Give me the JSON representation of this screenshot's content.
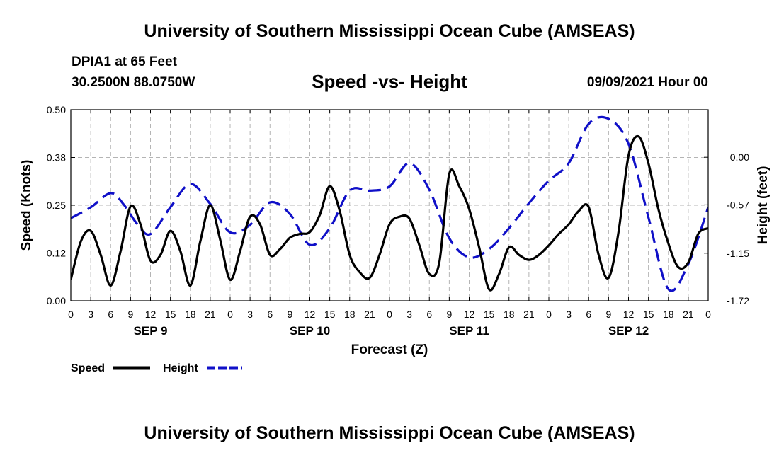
{
  "header": {
    "title": "University of Southern Mississippi Ocean Cube (AMSEAS)",
    "station": "DPIA1 at 65 Feet",
    "coords": "30.2500N  88.0750W",
    "subtitle": "Speed -vs- Height",
    "datetime": "09/09/2021 Hour 00"
  },
  "footer": {
    "title": "University of Southern Mississippi Ocean Cube (AMSEAS)"
  },
  "colors": {
    "speed": "#000000",
    "height": "#1010c8",
    "grid": "#b4b4b4"
  },
  "chart_data": {
    "type": "line",
    "title": "Speed -vs- Height",
    "xlabel": "Forecast (Z)",
    "ylabel": "Speed (Knots)",
    "y2label": "Height (feet)",
    "xlim": [
      0,
      96
    ],
    "ylim": [
      0,
      0.5
    ],
    "y2lim": [
      -1.72,
      0.57
    ],
    "x_ticks": [
      0,
      3,
      6,
      9,
      12,
      15,
      18,
      21,
      24,
      27,
      30,
      33,
      36,
      39,
      42,
      45,
      48,
      51,
      54,
      57,
      60,
      63,
      66,
      69,
      72,
      75,
      78,
      81,
      84,
      87,
      90,
      93,
      96
    ],
    "x_tick_labels": [
      "0",
      "3",
      "6",
      "9",
      "12",
      "15",
      "18",
      "21",
      "0",
      "3",
      "6",
      "9",
      "12",
      "15",
      "18",
      "21",
      "0",
      "3",
      "6",
      "9",
      "12",
      "15",
      "18",
      "21",
      "0",
      "3",
      "6",
      "9",
      "12",
      "15",
      "18",
      "21",
      "0"
    ],
    "day_labels": [
      {
        "label": "SEP 9",
        "x": 12
      },
      {
        "label": "SEP 10",
        "x": 36
      },
      {
        "label": "SEP 11",
        "x": 60
      },
      {
        "label": "SEP 12",
        "x": 84
      }
    ],
    "y_ticks": [
      0.0,
      0.125,
      0.25,
      0.375,
      0.5
    ],
    "y_tick_labels": [
      "0.00",
      "0.12",
      "0.25",
      "0.38",
      "0.50"
    ],
    "y2_ticks": [
      0.0,
      -0.57,
      -1.15,
      -1.72
    ],
    "y2_tick_labels": [
      "0.00",
      "-0.57",
      "-1.15",
      "-1.72"
    ],
    "legend": [
      {
        "name": "Speed",
        "style": "solid"
      },
      {
        "name": "Height",
        "style": "dashed"
      }
    ],
    "series": [
      {
        "name": "Speed",
        "axis": "left",
        "style": "solid",
        "x": [
          0,
          1.5,
          3,
          4.5,
          6,
          7.5,
          9,
          10.5,
          12,
          13.5,
          15,
          16.5,
          18,
          19.5,
          21,
          22.5,
          24,
          25.5,
          27,
          28.5,
          30,
          31.5,
          33,
          34.5,
          36,
          37.5,
          39,
          40.5,
          42,
          43.5,
          45,
          46.5,
          48,
          49.5,
          51,
          52.5,
          54,
          55.5,
          57,
          58.5,
          60,
          61.5,
          63,
          64.5,
          66,
          67.5,
          69,
          70.5,
          72,
          73.5,
          75,
          76.5,
          78,
          79.5,
          81,
          82.5,
          84,
          85.5,
          87,
          88.5,
          90,
          91.5,
          93,
          94.5,
          96
        ],
        "values": [
          0.055,
          0.155,
          0.183,
          0.12,
          0.04,
          0.13,
          0.247,
          0.2,
          0.105,
          0.12,
          0.183,
          0.13,
          0.04,
          0.155,
          0.25,
          0.16,
          0.055,
          0.13,
          0.22,
          0.2,
          0.12,
          0.135,
          0.165,
          0.175,
          0.18,
          0.225,
          0.3,
          0.235,
          0.12,
          0.075,
          0.06,
          0.12,
          0.2,
          0.22,
          0.215,
          0.145,
          0.07,
          0.1,
          0.332,
          0.3,
          0.24,
          0.14,
          0.03,
          0.07,
          0.14,
          0.12,
          0.107,
          0.12,
          0.145,
          0.175,
          0.2,
          0.235,
          0.245,
          0.12,
          0.06,
          0.18,
          0.38,
          0.43,
          0.36,
          0.24,
          0.15,
          0.088,
          0.1,
          0.175,
          0.19
        ]
      },
      {
        "name": "Height",
        "axis": "right",
        "style": "dashed",
        "x": [
          0,
          3,
          6,
          8,
          10,
          12,
          15,
          18,
          21,
          24,
          27,
          30,
          33,
          36,
          39,
          42,
          45,
          48,
          51,
          54,
          57,
          60,
          63,
          66,
          69,
          72,
          75,
          78,
          81,
          84,
          87,
          90,
          93,
          96
        ],
        "values": [
          -0.73,
          -0.6,
          -0.43,
          -0.57,
          -0.8,
          -0.92,
          -0.6,
          -0.32,
          -0.56,
          -0.9,
          -0.81,
          -0.54,
          -0.68,
          -1.05,
          -0.85,
          -0.4,
          -0.4,
          -0.35,
          -0.07,
          -0.39,
          -0.97,
          -1.2,
          -1.1,
          -0.85,
          -0.55,
          -0.28,
          -0.07,
          0.4,
          0.46,
          0.16,
          -0.72,
          -1.58,
          -1.28,
          -0.6
        ]
      }
    ]
  }
}
